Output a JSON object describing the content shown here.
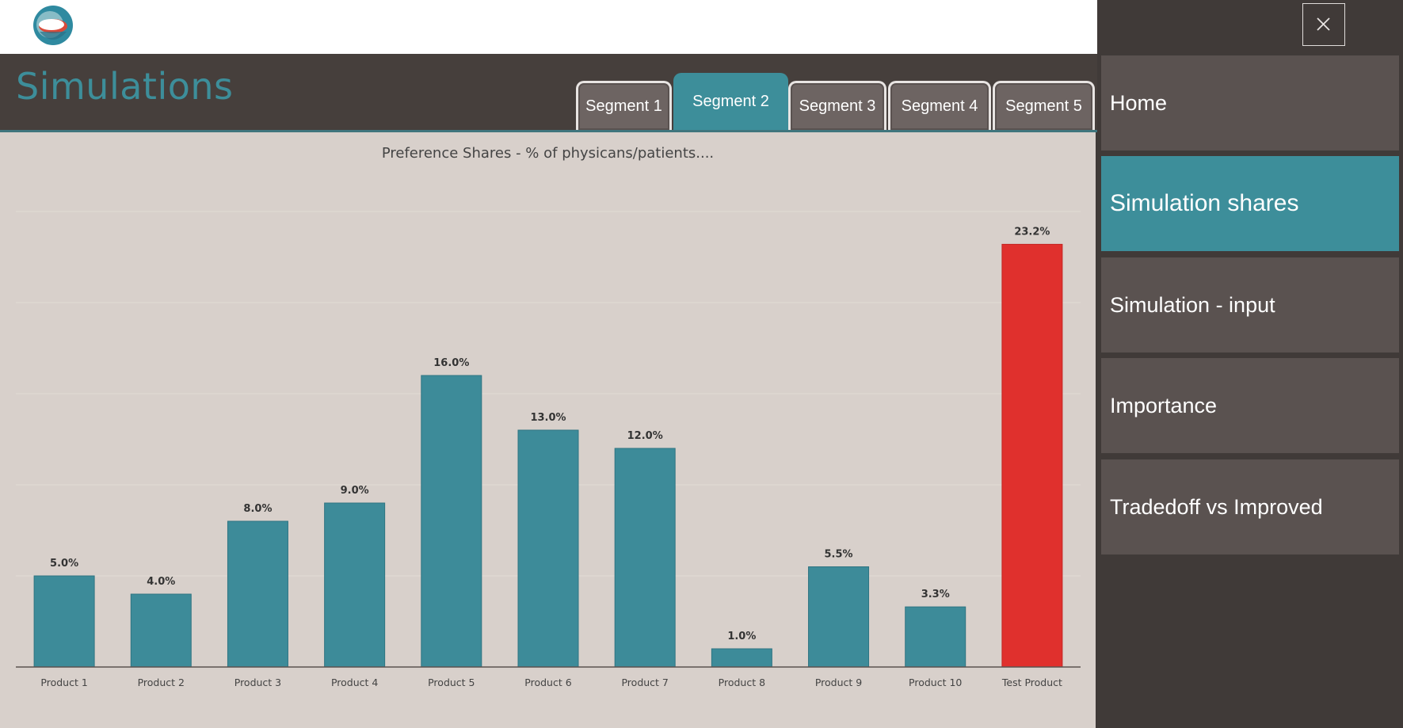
{
  "header": {
    "title": "Simulations"
  },
  "tabs": [
    {
      "label": "Segment 1",
      "active": false
    },
    {
      "label": "Segment 2",
      "active": true
    },
    {
      "label": "Segment 3",
      "active": false
    },
    {
      "label": "Segment 4",
      "active": false
    },
    {
      "label": "Segment 5",
      "active": false
    }
  ],
  "nav": {
    "close_icon": "close-icon",
    "items": [
      {
        "label": "Home",
        "active": false
      },
      {
        "label": "Simulation shares",
        "active": true
      },
      {
        "label": "Simulation - input",
        "active": false
      },
      {
        "label": "Importance",
        "active": false
      },
      {
        "label": "Tradedoff vs Improved",
        "active": false
      }
    ]
  },
  "colors": {
    "accent": "#3d8e9a",
    "bar": "#3d8b99",
    "highlight_bar": "#e0302d",
    "chart_bg": "#d8d0cb",
    "nav_bg": "#403a38",
    "nav_item_bg": "#5a5250"
  },
  "chart_data": {
    "type": "bar",
    "title": "Preference Shares - % of physicans/patients....",
    "categories": [
      "Product 1",
      "Product 2",
      "Product 3",
      "Product 4",
      "Product 5",
      "Product 6",
      "Product 7",
      "Product 8",
      "Product 9",
      "Product 10",
      "Test Product"
    ],
    "values": [
      5.0,
      4.0,
      8.0,
      9.0,
      16.0,
      13.0,
      12.0,
      1.0,
      5.5,
      3.3,
      23.2
    ],
    "data_labels": [
      "5.0%",
      "4.0%",
      "8.0%",
      "9.0%",
      "16.0%",
      "13.0%",
      "12.0%",
      "1.0%",
      "5.5%",
      "3.3%",
      "23.2%"
    ],
    "highlight_category": "Test Product",
    "xlabel": "",
    "ylabel": "",
    "ylim": [
      0,
      25
    ],
    "grid": true,
    "legend": "none"
  }
}
